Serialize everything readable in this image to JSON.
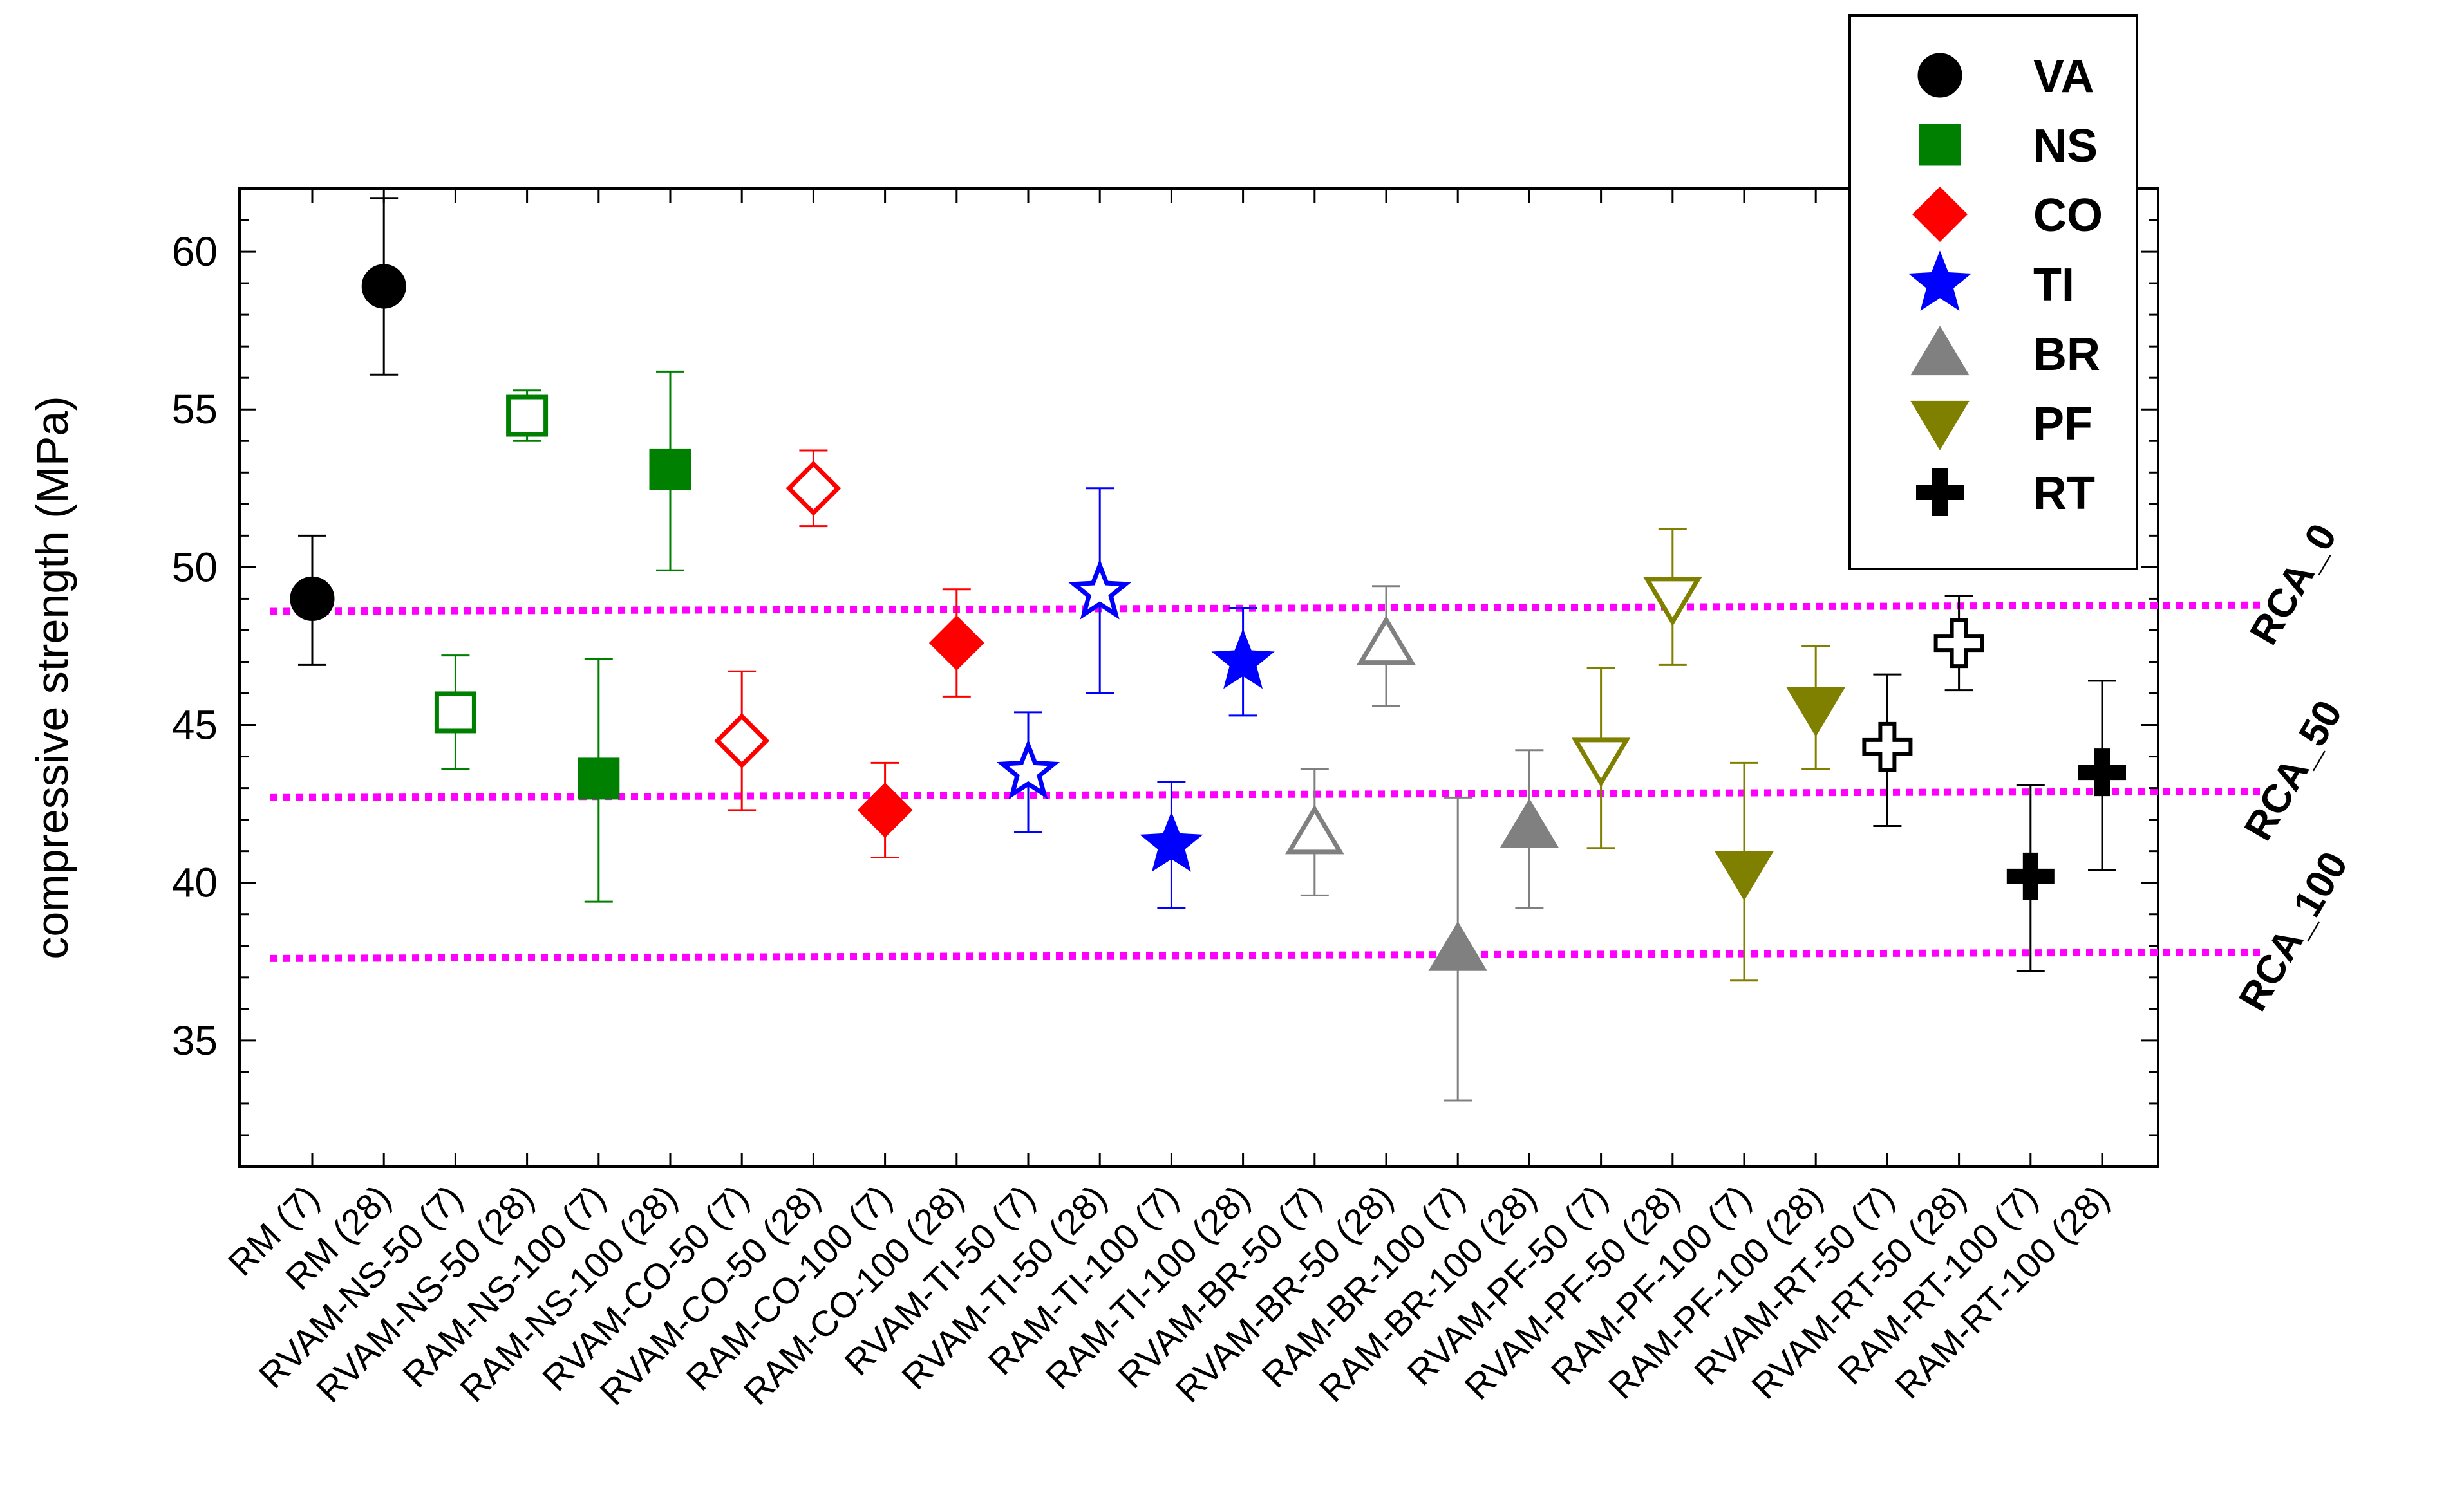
{
  "chart_data": {
    "type": "scatter",
    "title": "",
    "xlabel": "",
    "ylabel": "compressive strength (MPa)",
    "ylim": [
      31,
      62
    ],
    "yticks": [
      35,
      40,
      45,
      50,
      55,
      60
    ],
    "grid": false,
    "legend_position": "top-right",
    "categories": [
      "RM (7)",
      "RM (28)",
      "RVAM-NS-50 (7)",
      "RVAM-NS-50 (28)",
      "RAM-NS-100 (7)",
      "RAM-NS-100 (28)",
      "RVAM-CO-50 (7)",
      "RVAM-CO-50 (28)",
      "RAM-CO-100 (7)",
      "RAM-CO-100 (28)",
      "RVAM-TI-50 (7)",
      "RVAM-TI-50 (28)",
      "RAM-TI-100 (7)",
      "RAM-TI-100 (28)",
      "RVAM-BR-50 (7)",
      "RVAM-BR-50 (28)",
      "RAM-BR-100 (7)",
      "RAM-BR-100 (28)",
      "RVAM-PF-50 (7)",
      "RVAM-PF-50 (28)",
      "RAM-PF-100 (7)",
      "RAM-PF-100 (28)",
      "RVAM-RT-50 (7)",
      "RVAM-RT-50 (28)",
      "RAM-RT-100 (7)",
      "RAM-RT-100 (28)"
    ],
    "series": [
      {
        "name": "VA",
        "marker": "circle",
        "color": "#000000",
        "points": [
          {
            "cat": 0,
            "value": 49.0,
            "low": 46.9,
            "high": 51.0,
            "filled": true
          },
          {
            "cat": 1,
            "value": 58.9,
            "low": 56.1,
            "high": 61.7,
            "filled": true
          }
        ]
      },
      {
        "name": "NS",
        "marker": "square",
        "color": "#008000",
        "points": [
          {
            "cat": 2,
            "value": 45.4,
            "low": 43.6,
            "high": 47.2,
            "filled": false
          },
          {
            "cat": 3,
            "value": 54.8,
            "low": 54.0,
            "high": 55.6,
            "filled": false
          },
          {
            "cat": 4,
            "value": 43.3,
            "low": 39.4,
            "high": 47.1,
            "filled": true
          },
          {
            "cat": 5,
            "value": 53.1,
            "low": 49.9,
            "high": 56.2,
            "filled": true
          }
        ]
      },
      {
        "name": "CO",
        "marker": "diamond",
        "color": "#ff0000",
        "points": [
          {
            "cat": 6,
            "value": 44.5,
            "low": 42.3,
            "high": 46.7,
            "filled": false
          },
          {
            "cat": 7,
            "value": 52.5,
            "low": 51.3,
            "high": 53.7,
            "filled": false
          },
          {
            "cat": 8,
            "value": 42.3,
            "low": 40.8,
            "high": 43.8,
            "filled": true
          },
          {
            "cat": 9,
            "value": 47.6,
            "low": 45.9,
            "high": 49.3,
            "filled": true
          }
        ]
      },
      {
        "name": "TI",
        "marker": "star",
        "color": "#0000ff",
        "points": [
          {
            "cat": 10,
            "value": 43.5,
            "low": 41.6,
            "high": 45.4,
            "filled": false
          },
          {
            "cat": 11,
            "value": 49.2,
            "low": 46.0,
            "high": 52.5,
            "filled": false
          },
          {
            "cat": 12,
            "value": 41.2,
            "low": 39.2,
            "high": 43.2,
            "filled": true
          },
          {
            "cat": 13,
            "value": 47.0,
            "low": 45.3,
            "high": 48.7,
            "filled": true
          }
        ]
      },
      {
        "name": "BR",
        "marker": "triangle-up",
        "color": "#808080",
        "points": [
          {
            "cat": 14,
            "value": 41.6,
            "low": 39.6,
            "high": 43.6,
            "filled": false
          },
          {
            "cat": 15,
            "value": 47.6,
            "low": 45.6,
            "high": 49.4,
            "filled": false
          },
          {
            "cat": 16,
            "value": 37.9,
            "low": 33.1,
            "high": 42.7,
            "filled": true
          },
          {
            "cat": 17,
            "value": 41.8,
            "low": 39.2,
            "high": 44.2,
            "filled": true
          }
        ]
      },
      {
        "name": "PF",
        "marker": "triangle-down",
        "color": "#808000",
        "points": [
          {
            "cat": 18,
            "value": 43.9,
            "low": 41.1,
            "high": 46.8,
            "filled": false
          },
          {
            "cat": 19,
            "value": 49.0,
            "low": 46.9,
            "high": 51.2,
            "filled": false
          },
          {
            "cat": 20,
            "value": 40.3,
            "low": 36.9,
            "high": 43.8,
            "filled": true
          },
          {
            "cat": 21,
            "value": 45.5,
            "low": 43.6,
            "high": 47.5,
            "filled": true
          }
        ]
      },
      {
        "name": "RT",
        "marker": "cross",
        "color": "#000000",
        "points": [
          {
            "cat": 22,
            "value": 44.3,
            "low": 41.8,
            "high": 46.6,
            "filled": false
          },
          {
            "cat": 23,
            "value": 47.6,
            "low": 46.1,
            "high": 49.1,
            "filled": false
          },
          {
            "cat": 24,
            "value": 40.2,
            "low": 37.2,
            "high": 43.1,
            "filled": true
          },
          {
            "cat": 25,
            "value": 43.5,
            "low": 40.4,
            "high": 46.4,
            "filled": true
          }
        ]
      }
    ],
    "reference_lines": [
      {
        "label": "RCA_0",
        "y0": 48.6,
        "y1": 48.8
      },
      {
        "label": "RCA_50",
        "y0": 42.7,
        "y1": 42.9
      },
      {
        "label": "RCA_100",
        "y0": 37.6,
        "y1": 37.8
      }
    ],
    "reference_color": "#ff00ff"
  }
}
